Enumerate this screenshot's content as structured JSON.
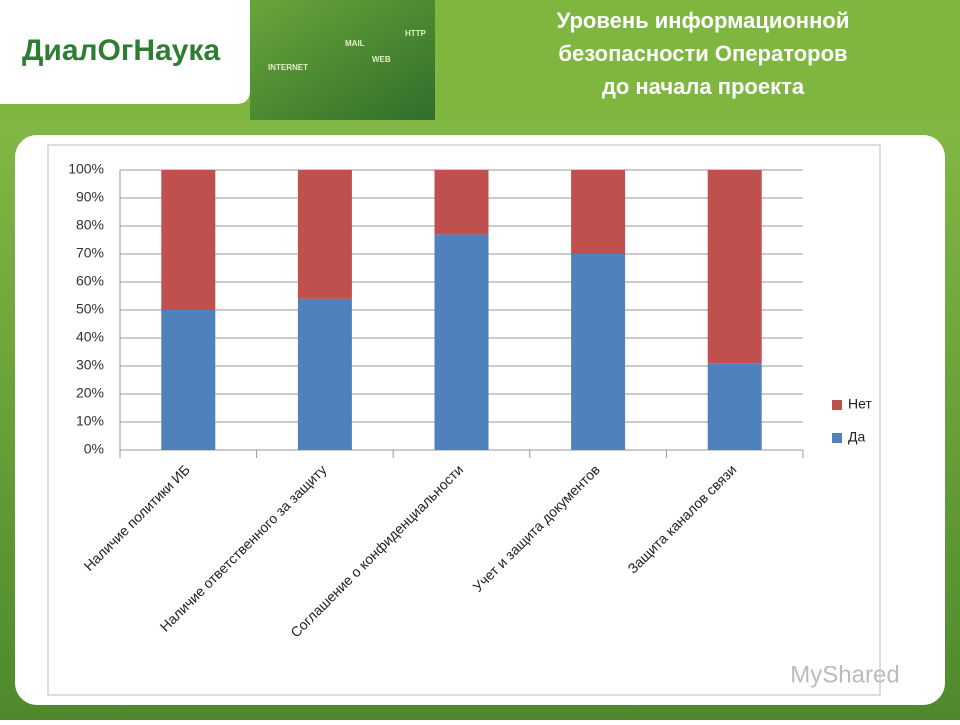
{
  "header": {
    "logo": "ДиалOгНаука",
    "banner_words": [
      "INTERNET",
      "MAIL",
      "WEB",
      "HTTP"
    ]
  },
  "watermark": "MyShared",
  "chart_data": {
    "type": "stacked_bar",
    "title": [
      "Уровень информационной",
      "безопасности Операторов",
      "до начала проекта"
    ],
    "categories": [
      "Наличие политики ИБ",
      "Наличие ответственного за защиту",
      "Соглашение о конфиденциальности",
      "Учет и защита документов",
      "Защита каналов связи"
    ],
    "series": [
      {
        "name": "Да",
        "color": "#4f81bd",
        "values": [
          50,
          54,
          77,
          70,
          31
        ]
      },
      {
        "name": "Нет",
        "color": "#c0504d",
        "values": [
          50,
          46,
          23,
          30,
          69
        ]
      }
    ],
    "ylim": [
      0,
      100
    ],
    "yticks": [
      {
        "value": 0,
        "label": "0%"
      },
      {
        "value": 10,
        "label": "10%"
      },
      {
        "value": 20,
        "label": "20%"
      },
      {
        "value": 30,
        "label": "30%"
      },
      {
        "value": 40,
        "label": "40%"
      },
      {
        "value": 50,
        "label": "50%"
      },
      {
        "value": 60,
        "label": "60%"
      },
      {
        "value": 70,
        "label": "70%"
      },
      {
        "value": 80,
        "label": "80%"
      },
      {
        "value": 90,
        "label": "90%"
      },
      {
        "value": 100,
        "label": "100%"
      }
    ],
    "grid": true,
    "legend": "right"
  }
}
